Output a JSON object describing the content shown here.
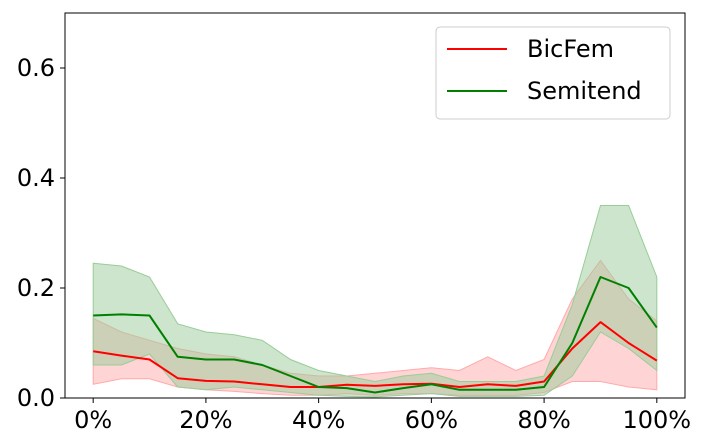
{
  "chart_data": {
    "type": "line",
    "title": "",
    "xlabel": "",
    "ylabel": "",
    "xlim": [
      -5,
      105
    ],
    "ylim": [
      0,
      0.7
    ],
    "x_ticks": [
      0,
      20,
      40,
      60,
      80,
      100
    ],
    "x_tick_labels": [
      "0%",
      "20%",
      "40%",
      "60%",
      "80%",
      "100%"
    ],
    "y_ticks": [
      0.0,
      0.2,
      0.4,
      0.6
    ],
    "y_tick_labels": [
      "0.0",
      "0.2",
      "0.4",
      "0.6"
    ],
    "grid": false,
    "legend_position": "top-right",
    "x": [
      0,
      5,
      10,
      15,
      20,
      25,
      30,
      35,
      40,
      45,
      50,
      55,
      60,
      65,
      70,
      75,
      80,
      85,
      90,
      95,
      100
    ],
    "series": [
      {
        "name": "BicFem",
        "color": "#ff0000",
        "band_color": "#ffaaaa",
        "mean": [
          0.085,
          0.077,
          0.07,
          0.036,
          0.031,
          0.03,
          0.025,
          0.02,
          0.02,
          0.024,
          0.022,
          0.025,
          0.026,
          0.02,
          0.025,
          0.022,
          0.03,
          0.09,
          0.138,
          0.1,
          0.068
        ],
        "upper": [
          0.145,
          0.12,
          0.105,
          0.09,
          0.08,
          0.075,
          0.06,
          0.045,
          0.04,
          0.04,
          0.045,
          0.05,
          0.055,
          0.05,
          0.075,
          0.05,
          0.07,
          0.18,
          0.25,
          0.18,
          0.14
        ],
        "lower": [
          0.025,
          0.035,
          0.035,
          0.02,
          0.015,
          0.012,
          0.008,
          0.005,
          0.005,
          0.008,
          0.005,
          0.008,
          0.008,
          0.005,
          0.005,
          0.005,
          0.01,
          0.03,
          0.03,
          0.02,
          0.015
        ]
      },
      {
        "name": "Semitend",
        "color": "#008000",
        "band_color": "#99cc99",
        "mean": [
          0.15,
          0.152,
          0.15,
          0.075,
          0.07,
          0.07,
          0.06,
          0.04,
          0.02,
          0.018,
          0.01,
          0.018,
          0.025,
          0.015,
          0.015,
          0.015,
          0.02,
          0.1,
          0.22,
          0.2,
          0.128
        ],
        "upper": [
          0.245,
          0.24,
          0.22,
          0.135,
          0.12,
          0.115,
          0.105,
          0.07,
          0.05,
          0.04,
          0.03,
          0.04,
          0.045,
          0.03,
          0.03,
          0.03,
          0.04,
          0.17,
          0.35,
          0.35,
          0.22
        ],
        "lower": [
          0.06,
          0.06,
          0.08,
          0.02,
          0.015,
          0.02,
          0.015,
          0.01,
          0.005,
          0.003,
          0.002,
          0.005,
          0.008,
          0.003,
          0.003,
          0.003,
          0.005,
          0.04,
          0.12,
          0.09,
          0.05
        ]
      }
    ]
  }
}
